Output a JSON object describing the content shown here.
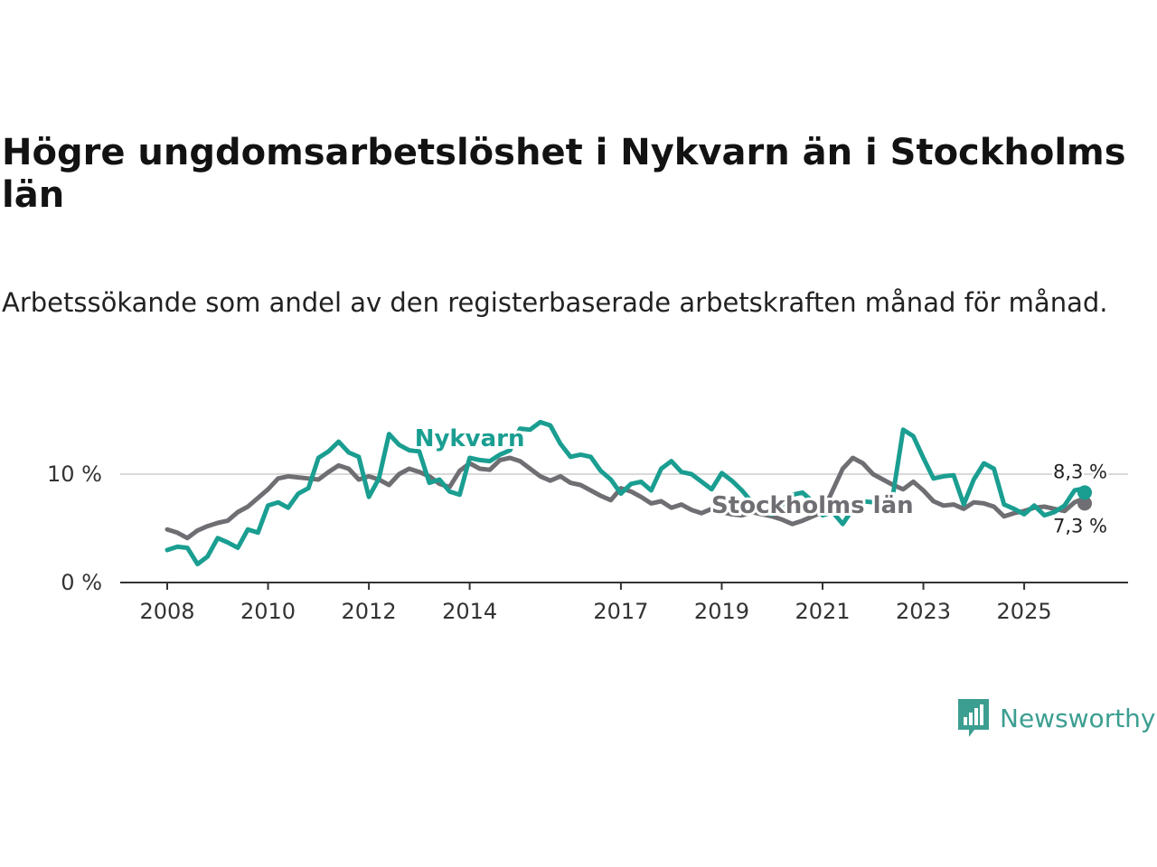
{
  "title": "Högre ungdomsarbetslöshet i Nykvarn än i Stockholms län",
  "subtitle": "Arbetssökande som andel av den registerbaserade arbetskraften månad för månad.",
  "brand": {
    "name": "Newsworthy",
    "logo_icon": "bar-chart-speech-bubble-icon",
    "color": "#3c9e91"
  },
  "chart_data": {
    "type": "line",
    "xlim": [
      2008,
      2026.2
    ],
    "ylim": [
      0,
      15
    ],
    "y_ticks": [
      {
        "value": 0,
        "label": "0 %"
      },
      {
        "value": 10,
        "label": "10 %"
      }
    ],
    "x_ticks": [
      {
        "value": 2008,
        "label": "2008"
      },
      {
        "value": 2010,
        "label": "2010"
      },
      {
        "value": 2012,
        "label": "2012"
      },
      {
        "value": 2014,
        "label": "2014"
      },
      {
        "value": 2017,
        "label": "2017"
      },
      {
        "value": 2019,
        "label": "2019"
      },
      {
        "value": 2021,
        "label": "2021"
      },
      {
        "value": 2023,
        "label": "2023"
      },
      {
        "value": 2025,
        "label": "2025"
      }
    ],
    "series": [
      {
        "name": "Stockholms län",
        "color": "#6e6e73",
        "end_label": "7,3 %",
        "points": [
          [
            2008.0,
            4.9
          ],
          [
            2008.2,
            4.6
          ],
          [
            2008.4,
            4.1
          ],
          [
            2008.6,
            4.8
          ],
          [
            2008.8,
            5.2
          ],
          [
            2009.0,
            5.5
          ],
          [
            2009.2,
            5.7
          ],
          [
            2009.4,
            6.5
          ],
          [
            2009.6,
            7.0
          ],
          [
            2009.8,
            7.8
          ],
          [
            2010.0,
            8.6
          ],
          [
            2010.2,
            9.6
          ],
          [
            2010.4,
            9.8
          ],
          [
            2010.6,
            9.7
          ],
          [
            2010.8,
            9.6
          ],
          [
            2011.0,
            9.5
          ],
          [
            2011.2,
            10.2
          ],
          [
            2011.4,
            10.8
          ],
          [
            2011.6,
            10.5
          ],
          [
            2011.8,
            9.5
          ],
          [
            2012.0,
            9.8
          ],
          [
            2012.2,
            9.5
          ],
          [
            2012.4,
            9.0
          ],
          [
            2012.6,
            10.0
          ],
          [
            2012.8,
            10.5
          ],
          [
            2013.0,
            10.2
          ],
          [
            2013.2,
            9.8
          ],
          [
            2013.4,
            9.1
          ],
          [
            2013.6,
            8.8
          ],
          [
            2013.8,
            10.3
          ],
          [
            2014.0,
            11.0
          ],
          [
            2014.2,
            10.5
          ],
          [
            2014.4,
            10.4
          ],
          [
            2014.6,
            11.3
          ],
          [
            2014.8,
            11.5
          ],
          [
            2015.0,
            11.2
          ],
          [
            2015.2,
            10.5
          ],
          [
            2015.4,
            9.8
          ],
          [
            2015.6,
            9.4
          ],
          [
            2015.8,
            9.8
          ],
          [
            2016.0,
            9.2
          ],
          [
            2016.2,
            9.0
          ],
          [
            2016.4,
            8.5
          ],
          [
            2016.6,
            8.0
          ],
          [
            2016.8,
            7.6
          ],
          [
            2017.0,
            8.7
          ],
          [
            2017.2,
            8.4
          ],
          [
            2017.4,
            7.9
          ],
          [
            2017.6,
            7.3
          ],
          [
            2017.8,
            7.5
          ],
          [
            2018.0,
            6.9
          ],
          [
            2018.2,
            7.2
          ],
          [
            2018.4,
            6.7
          ],
          [
            2018.6,
            6.4
          ],
          [
            2018.8,
            6.8
          ],
          [
            2019.0,
            6.5
          ],
          [
            2019.2,
            6.3
          ],
          [
            2019.4,
            6.2
          ],
          [
            2019.6,
            6.5
          ],
          [
            2019.8,
            6.3
          ],
          [
            2020.0,
            6.1
          ],
          [
            2020.2,
            5.8
          ],
          [
            2020.4,
            5.4
          ],
          [
            2020.6,
            5.7
          ],
          [
            2020.8,
            6.1
          ],
          [
            2021.0,
            6.5
          ],
          [
            2021.2,
            8.5
          ],
          [
            2021.4,
            10.5
          ],
          [
            2021.6,
            11.5
          ],
          [
            2021.8,
            11.0
          ],
          [
            2022.0,
            10.0
          ],
          [
            2022.2,
            9.5
          ],
          [
            2022.4,
            9.0
          ],
          [
            2022.6,
            8.6
          ],
          [
            2022.8,
            9.3
          ],
          [
            2023.0,
            8.5
          ],
          [
            2023.2,
            7.5
          ],
          [
            2023.4,
            7.1
          ],
          [
            2023.6,
            7.2
          ],
          [
            2023.8,
            6.8
          ],
          [
            2024.0,
            7.4
          ],
          [
            2024.2,
            7.3
          ],
          [
            2024.4,
            7.0
          ],
          [
            2024.6,
            6.1
          ],
          [
            2024.8,
            6.4
          ],
          [
            2025.0,
            6.6
          ],
          [
            2025.2,
            6.9
          ],
          [
            2025.4,
            7.0
          ],
          [
            2025.6,
            6.8
          ],
          [
            2025.8,
            6.6
          ],
          [
            2026.0,
            7.4
          ],
          [
            2026.1,
            7.6
          ],
          [
            2026.2,
            7.3
          ]
        ]
      },
      {
        "name": "Nykvarn",
        "color": "#1a9e91",
        "end_label": "8,3 %",
        "points": [
          [
            2008.0,
            3.0
          ],
          [
            2008.2,
            3.3
          ],
          [
            2008.4,
            3.2
          ],
          [
            2008.6,
            1.7
          ],
          [
            2008.8,
            2.4
          ],
          [
            2009.0,
            4.1
          ],
          [
            2009.2,
            3.7
          ],
          [
            2009.4,
            3.2
          ],
          [
            2009.6,
            4.9
          ],
          [
            2009.8,
            4.6
          ],
          [
            2010.0,
            7.1
          ],
          [
            2010.2,
            7.4
          ],
          [
            2010.4,
            6.9
          ],
          [
            2010.6,
            8.2
          ],
          [
            2010.8,
            8.7
          ],
          [
            2011.0,
            11.5
          ],
          [
            2011.2,
            12.1
          ],
          [
            2011.4,
            13.0
          ],
          [
            2011.6,
            12.0
          ],
          [
            2011.8,
            11.6
          ],
          [
            2012.0,
            7.9
          ],
          [
            2012.2,
            9.6
          ],
          [
            2012.4,
            13.7
          ],
          [
            2012.6,
            12.7
          ],
          [
            2012.8,
            12.2
          ],
          [
            2013.0,
            12.1
          ],
          [
            2013.2,
            9.2
          ],
          [
            2013.4,
            9.5
          ],
          [
            2013.6,
            8.4
          ],
          [
            2013.8,
            8.1
          ],
          [
            2014.0,
            11.5
          ],
          [
            2014.2,
            11.3
          ],
          [
            2014.4,
            11.2
          ],
          [
            2014.6,
            11.8
          ],
          [
            2014.8,
            12.2
          ],
          [
            2015.0,
            14.2
          ],
          [
            2015.2,
            14.1
          ],
          [
            2015.4,
            14.8
          ],
          [
            2015.6,
            14.5
          ],
          [
            2015.8,
            12.8
          ],
          [
            2016.0,
            11.6
          ],
          [
            2016.2,
            11.8
          ],
          [
            2016.4,
            11.6
          ],
          [
            2016.6,
            10.3
          ],
          [
            2016.8,
            9.5
          ],
          [
            2017.0,
            8.2
          ],
          [
            2017.2,
            9.1
          ],
          [
            2017.4,
            9.3
          ],
          [
            2017.6,
            8.5
          ],
          [
            2017.8,
            10.5
          ],
          [
            2018.0,
            11.2
          ],
          [
            2018.2,
            10.2
          ],
          [
            2018.4,
            10.0
          ],
          [
            2018.6,
            9.3
          ],
          [
            2018.8,
            8.6
          ],
          [
            2019.0,
            10.1
          ],
          [
            2019.2,
            9.4
          ],
          [
            2019.4,
            8.5
          ],
          [
            2019.6,
            7.4
          ],
          [
            2019.8,
            6.5
          ],
          [
            2020.0,
            6.3
          ],
          [
            2020.2,
            7.2
          ],
          [
            2020.4,
            8.1
          ],
          [
            2020.6,
            8.3
          ],
          [
            2020.8,
            7.5
          ],
          [
            2021.0,
            6.2
          ],
          [
            2021.2,
            6.5
          ],
          [
            2021.4,
            5.4
          ],
          [
            2021.6,
            6.8
          ],
          [
            2021.8,
            7.5
          ],
          [
            2022.0,
            7.4
          ],
          [
            2022.2,
            7.2
          ],
          [
            2022.4,
            8.2
          ],
          [
            2022.6,
            14.1
          ],
          [
            2022.8,
            13.5
          ],
          [
            2023.0,
            11.5
          ],
          [
            2023.2,
            9.6
          ],
          [
            2023.4,
            9.8
          ],
          [
            2023.6,
            9.9
          ],
          [
            2023.8,
            7.2
          ],
          [
            2024.0,
            9.5
          ],
          [
            2024.2,
            11.0
          ],
          [
            2024.4,
            10.5
          ],
          [
            2024.6,
            7.2
          ],
          [
            2024.8,
            6.8
          ],
          [
            2025.0,
            6.3
          ],
          [
            2025.2,
            7.1
          ],
          [
            2025.4,
            6.2
          ],
          [
            2025.6,
            6.5
          ],
          [
            2025.8,
            7.1
          ],
          [
            2026.0,
            8.5
          ],
          [
            2026.1,
            8.6
          ],
          [
            2026.2,
            8.3
          ]
        ]
      }
    ]
  }
}
